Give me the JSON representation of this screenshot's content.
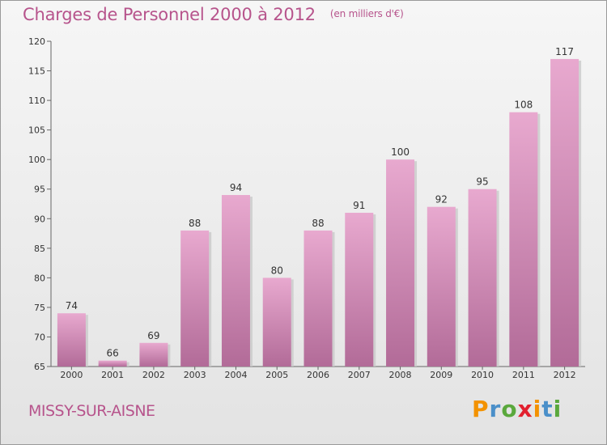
{
  "title": "Charges de Personnel 2000 à 2012",
  "unit": "(en milliers d'€)",
  "commune": "MISSY-SUR-AISNE",
  "brand": {
    "letters": [
      "P",
      "r",
      "o",
      "x",
      "i",
      "t",
      "i"
    ],
    "colors": [
      "#f39200",
      "#4a8fc9",
      "#5aa83c",
      "#e2202f",
      "#f39200",
      "#4a8fc9",
      "#5aa83c"
    ]
  },
  "colors": {
    "bar_light": "#e8a9cf",
    "bar_dark": "#b26b98",
    "title": "#b7548c"
  },
  "chart_data": {
    "type": "bar",
    "title": "Charges de Personnel 2000 à 2012",
    "subtitle": "(en milliers d'€)",
    "categories": [
      "2000",
      "2001",
      "2002",
      "2003",
      "2004",
      "2005",
      "2006",
      "2007",
      "2008",
      "2009",
      "2010",
      "2011",
      "2012"
    ],
    "values": [
      74,
      66,
      69,
      88,
      94,
      80,
      88,
      91,
      100,
      92,
      95,
      108,
      117
    ],
    "ylim": [
      65,
      120
    ],
    "yticks": [
      65,
      70,
      75,
      80,
      85,
      90,
      95,
      100,
      105,
      110,
      115,
      120
    ],
    "xlabel": "",
    "ylabel": ""
  }
}
